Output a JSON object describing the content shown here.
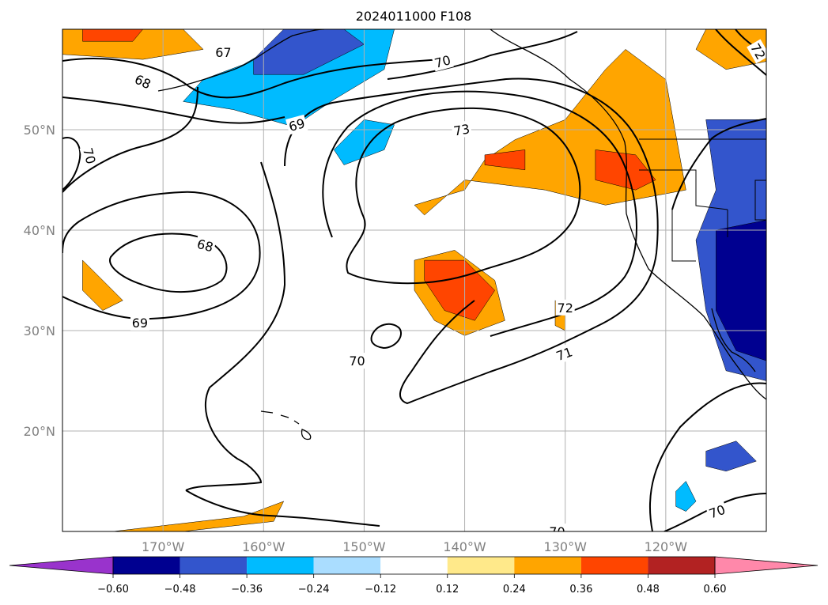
{
  "title": "2024011000 F108",
  "map": {
    "lon_range": [
      -180,
      -110
    ],
    "lat_range": [
      10,
      60
    ],
    "lon_gridlines": [
      -170,
      -160,
      -150,
      -140,
      -130,
      -120
    ],
    "lat_gridlines": [
      20,
      30,
      40,
      50
    ],
    "lon_labels": [
      "170°W",
      "160°W",
      "150°W",
      "140°W",
      "130°W",
      "120°W"
    ],
    "lat_labels": [
      "20°N",
      "30°N",
      "40°N",
      "50°N"
    ],
    "grid": true
  },
  "colorbar": {
    "orientation": "horizontal",
    "extend": "both",
    "levels": [
      -0.6,
      -0.48,
      -0.36,
      -0.24,
      -0.12,
      0.12,
      0.24,
      0.36,
      0.48,
      0.6
    ],
    "tick_labels": [
      "−0.60",
      "−0.48",
      "−0.36",
      "−0.24",
      "−0.12",
      "0.12",
      "0.24",
      "0.36",
      "0.48",
      "0.60"
    ],
    "colors": [
      "#9933cc",
      "#000090",
      "#3355cc",
      "#00bbff",
      "#aaddff",
      "#ffffff",
      "#ffe98a",
      "#ffa500",
      "#ff4500",
      "#b22222",
      "#ff88aa"
    ]
  },
  "contour_labels": [
    {
      "text": "67",
      "lon": -164,
      "lat": 57.7,
      "rot": 0
    },
    {
      "text": "68",
      "lon": -172,
      "lat": 54.8,
      "rot": 25
    },
    {
      "text": "69",
      "lon": -156.7,
      "lat": 50.5,
      "rot": -15
    },
    {
      "text": "70",
      "lon": -142.2,
      "lat": 56.8,
      "rot": -15
    },
    {
      "text": "73",
      "lon": -140.3,
      "lat": 50.0,
      "rot": -10
    },
    {
      "text": "72",
      "lon": -110.8,
      "lat": 57.8,
      "rot": 60
    },
    {
      "text": "70",
      "lon": -177.3,
      "lat": 47.4,
      "rot": 75
    },
    {
      "text": "68",
      "lon": -165.8,
      "lat": 38.5,
      "rot": 15
    },
    {
      "text": "69",
      "lon": -172.3,
      "lat": 30.8,
      "rot": 0
    },
    {
      "text": "70",
      "lon": -150.7,
      "lat": 27.0,
      "rot": 0
    },
    {
      "text": "72",
      "lon": -130.0,
      "lat": 32.3,
      "rot": 0
    },
    {
      "text": "71",
      "lon": -130.1,
      "lat": 27.7,
      "rot": -20
    },
    {
      "text": "70",
      "lon": -114.9,
      "lat": 12.0,
      "rot": -20
    },
    {
      "text": "70",
      "lon": -130.8,
      "lat": 10.0,
      "rot": 0
    }
  ],
  "shaded_regions": [
    {
      "name": "orange-band-top-left",
      "level_color": "#ffa500",
      "pts": [
        [
          -180,
          60
        ],
        [
          -168,
          60
        ],
        [
          -166,
          58
        ],
        [
          -172,
          57
        ],
        [
          -180,
          57.5
        ]
      ]
    },
    {
      "name": "redorange-top-left",
      "level_color": "#ff4500",
      "pts": [
        [
          -178,
          60
        ],
        [
          -172,
          60
        ],
        [
          -173,
          58.8
        ],
        [
          -178,
          58.8
        ]
      ]
    },
    {
      "name": "blue-alaska-wide",
      "level_color": "#00bbff",
      "pts": [
        [
          -166,
          55
        ],
        [
          -162,
          56.5
        ],
        [
          -156,
          60
        ],
        [
          -147,
          60
        ],
        [
          -148,
          56
        ],
        [
          -153,
          53
        ],
        [
          -157,
          50.3
        ],
        [
          -163,
          52
        ],
        [
          -168,
          52.8
        ]
      ]
    },
    {
      "name": "blue-alaska-dark",
      "level_color": "#3355cc",
      "pts": [
        [
          -161,
          57
        ],
        [
          -158,
          60
        ],
        [
          -152,
          60
        ],
        [
          -150,
          58.5
        ],
        [
          -156,
          55.5
        ],
        [
          -161,
          55.5
        ]
      ]
    },
    {
      "name": "blue-patch-mid",
      "level_color": "#00bbff",
      "pts": [
        [
          -153,
          48
        ],
        [
          -150,
          51
        ],
        [
          -147,
          50.5
        ],
        [
          -148,
          48
        ],
        [
          -152,
          46.5
        ]
      ]
    },
    {
      "name": "orange-ne-pacific",
      "level_color": "#ffa500",
      "pts": [
        [
          -145,
          42.5
        ],
        [
          -140,
          44
        ],
        [
          -138,
          47
        ],
        [
          -135,
          49
        ],
        [
          -130,
          51
        ],
        [
          -126,
          56
        ],
        [
          -124,
          58
        ],
        [
          -120,
          55
        ],
        [
          -118,
          44
        ],
        [
          -126,
          42.5
        ],
        [
          -132,
          44
        ],
        [
          -140,
          45
        ],
        [
          -144,
          41.5
        ]
      ]
    },
    {
      "name": "redorange-ne-pacific",
      "level_color": "#ff4500",
      "pts": [
        [
          -127,
          48
        ],
        [
          -123,
          47.5
        ],
        [
          -121,
          45
        ],
        [
          -123,
          44
        ],
        [
          -127,
          45
        ]
      ]
    },
    {
      "name": "redorange-ne-pacific2",
      "level_color": "#ff4500",
      "pts": [
        [
          -138,
          47.5
        ],
        [
          -134,
          48
        ],
        [
          -134,
          46
        ],
        [
          -138,
          46.5
        ]
      ]
    },
    {
      "name": "orange-top-right",
      "level_color": "#ffa500",
      "pts": [
        [
          -116,
          60
        ],
        [
          -109,
          60
        ],
        [
          -109,
          57
        ],
        [
          -114,
          56
        ],
        [
          -117,
          58
        ]
      ]
    },
    {
      "name": "purple-west-coast",
      "level_color": "#9933cc",
      "pts": [
        [
          -114,
          49
        ],
        [
          -110,
          50
        ],
        [
          -110,
          42
        ],
        [
          -114,
          43.5
        ]
      ]
    },
    {
      "name": "blue-west-coast",
      "level_color": "#3355cc",
      "pts": [
        [
          -116,
          51
        ],
        [
          -110,
          51
        ],
        [
          -110,
          25
        ],
        [
          -114,
          26
        ],
        [
          -116,
          32
        ],
        [
          -117,
          39
        ],
        [
          -115,
          44
        ]
      ]
    },
    {
      "name": "darkblue-west-coast",
      "level_color": "#000090",
      "pts": [
        [
          -115,
          40
        ],
        [
          -110,
          41
        ],
        [
          -110,
          27
        ],
        [
          -113,
          28
        ],
        [
          -115,
          32
        ]
      ]
    },
    {
      "name": "orange-central",
      "level_color": "#ffa500",
      "pts": [
        [
          -145,
          37
        ],
        [
          -141,
          38
        ],
        [
          -137,
          35
        ],
        [
          -136,
          31
        ],
        [
          -140,
          29.5
        ],
        [
          -143,
          31
        ],
        [
          -145,
          34
        ]
      ]
    },
    {
      "name": "redorange-central",
      "level_color": "#ff4500",
      "pts": [
        [
          -144,
          37
        ],
        [
          -140,
          37
        ],
        [
          -137,
          34
        ],
        [
          -139,
          31
        ],
        [
          -142,
          32
        ],
        [
          -144,
          35
        ]
      ]
    },
    {
      "name": "orange-small-west",
      "level_color": "#ffa500",
      "pts": [
        [
          -178,
          37
        ],
        [
          -176,
          35
        ],
        [
          -174,
          33
        ],
        [
          -176,
          32
        ],
        [
          -178,
          34
        ]
      ]
    },
    {
      "name": "orange-bottom-left",
      "level_color": "#ffa500",
      "pts": [
        [
          -175,
          10
        ],
        [
          -162,
          11.5
        ],
        [
          -158,
          13
        ],
        [
          -159,
          11
        ],
        [
          -168,
          10
        ]
      ]
    },
    {
      "name": "blue-bottom-right",
      "level_color": "#3355cc",
      "pts": [
        [
          -116,
          18
        ],
        [
          -113,
          19
        ],
        [
          -111,
          17
        ],
        [
          -114,
          16
        ],
        [
          -116,
          16.5
        ]
      ]
    },
    {
      "name": "blue-bottom-right2",
      "level_color": "#00bbff",
      "pts": [
        [
          -119,
          14
        ],
        [
          -118,
          15
        ],
        [
          -117,
          13
        ],
        [
          -118,
          12
        ],
        [
          -119,
          12.5
        ]
      ]
    },
    {
      "name": "orange-small-mid",
      "level_color": "#ffa500",
      "pts": [
        [
          -131,
          33
        ],
        [
          -130,
          32
        ],
        [
          -130,
          30
        ],
        [
          -131,
          30.5
        ]
      ]
    }
  ]
}
